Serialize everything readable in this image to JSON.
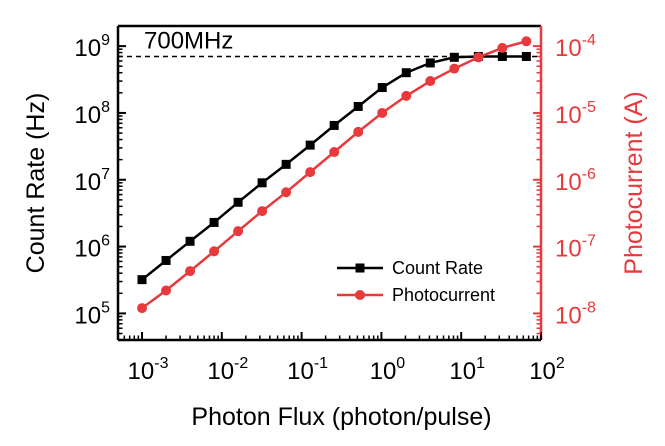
{
  "chart_data": {
    "type": "line",
    "x_scale": "log",
    "y_scale": "log",
    "x": [
      0.001,
      0.002,
      0.004,
      0.008,
      0.016,
      0.032,
      0.064,
      0.128,
      0.256,
      0.512,
      1.024,
      2.048,
      4.096,
      8.192,
      16.384,
      32.768,
      65.536
    ],
    "series": [
      {
        "name": "Count Rate",
        "axis": "left",
        "color": "#000000",
        "marker": "square",
        "values": [
          320000,
          620000,
          1200000,
          2300000,
          4600000,
          9000000,
          17000000,
          33000000,
          65000000,
          125000000,
          240000000,
          400000000,
          560000000,
          680000000,
          700000000,
          700000000,
          700000000
        ]
      },
      {
        "name": "Photocurrent",
        "axis": "right",
        "color": "#e8393c",
        "marker": "circle",
        "values": [
          1.2e-08,
          2.2e-08,
          4.3e-08,
          8.5e-08,
          1.7e-07,
          3.4e-07,
          6.5e-07,
          1.3e-06,
          2.6e-06,
          5.2e-06,
          1e-05,
          1.8e-05,
          3e-05,
          4.6e-05,
          6.8e-05,
          9.4e-05,
          0.000118
        ]
      }
    ],
    "hline": {
      "value": 700000000,
      "axis": "left",
      "style": "dashed",
      "label": "700MHz"
    },
    "xlabel": "Photon Flux (photon/pulse)",
    "ylabel_left": "Count Rate (Hz)",
    "ylabel_right": "Photocurrent (A)",
    "xlim": [
      0.0005,
      100
    ],
    "ylim_left": [
      40000,
      2000000000
    ],
    "ylim_right": [
      4e-09,
      0.0002
    ],
    "x_ticks": [
      {
        "value": 0.001,
        "base": "10",
        "exp": "-3"
      },
      {
        "value": 0.01,
        "base": "10",
        "exp": "-2"
      },
      {
        "value": 0.1,
        "base": "10",
        "exp": "-1"
      },
      {
        "value": 1,
        "base": "10",
        "exp": "0"
      },
      {
        "value": 10,
        "base": "10",
        "exp": "1"
      },
      {
        "value": 100,
        "base": "10",
        "exp": "2"
      }
    ],
    "y_ticks_left": [
      {
        "value": 100000,
        "base": "10",
        "exp": "5"
      },
      {
        "value": 1000000,
        "base": "10",
        "exp": "6"
      },
      {
        "value": 10000000,
        "base": "10",
        "exp": "7"
      },
      {
        "value": 100000000,
        "base": "10",
        "exp": "8"
      },
      {
        "value": 1000000000,
        "base": "10",
        "exp": "9"
      }
    ],
    "y_ticks_right": [
      {
        "value": 1e-08,
        "base": "10",
        "exp": "-8"
      },
      {
        "value": 1e-07,
        "base": "10",
        "exp": "-7"
      },
      {
        "value": 1e-06,
        "base": "10",
        "exp": "-6"
      },
      {
        "value": 1e-05,
        "base": "10",
        "exp": "-5"
      },
      {
        "value": 0.0001,
        "base": "10",
        "exp": "-4"
      }
    ],
    "legend": {
      "location": "lower-right",
      "entries": [
        {
          "label": "Count Rate",
          "color": "#000000",
          "marker": "square"
        },
        {
          "label": "Photocurrent",
          "color": "#e8393c",
          "marker": "circle"
        }
      ]
    },
    "colors": {
      "left_axis": "#000000",
      "right_axis": "#e8393c"
    }
  }
}
